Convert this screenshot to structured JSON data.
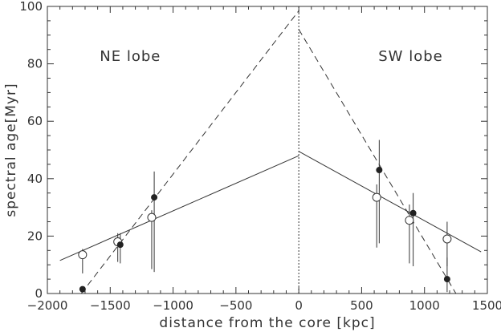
{
  "chart_data": {
    "type": "scatter",
    "xlabel": "distance from the core [kpc]",
    "ylabel": "spectral age[Myr]",
    "xlim": [
      -2000,
      1500
    ],
    "ylim": [
      0,
      100
    ],
    "x_ticks": [
      -2000,
      -1500,
      -1000,
      -500,
      0,
      500,
      1000,
      1500
    ],
    "y_ticks": [
      0,
      20,
      40,
      60,
      80,
      100
    ],
    "x_tick_labels": [
      "−2000",
      "−1500",
      "−1000",
      "−500",
      "0",
      "500",
      "1000",
      "1500"
    ],
    "y_tick_labels": [
      "0",
      "20",
      "40",
      "60",
      "80",
      "100"
    ],
    "grid": false,
    "annotations": [
      {
        "text": "NE lobe",
        "x": -1340,
        "y": 81
      },
      {
        "text": "SW lobe",
        "x": 890,
        "y": 81
      }
    ],
    "vertical_reference_line": {
      "x": 0,
      "style": "dotted"
    },
    "series": [
      {
        "marker": "open-circle",
        "points": [
          {
            "x": -1720,
            "y": 13.5,
            "yerr_low": 7.0,
            "yerr_high": 15.5
          },
          {
            "x": -1440,
            "y": 18.0,
            "yerr_low": 11.0,
            "yerr_high": 21.0
          },
          {
            "x": -1170,
            "y": 26.5,
            "yerr_low": 8.5,
            "yerr_high": 29.0
          },
          {
            "x": 620,
            "y": 33.5,
            "yerr_low": 16.0,
            "yerr_high": 38.0
          },
          {
            "x": 880,
            "y": 25.5,
            "yerr_low": 10.5,
            "yerr_high": 31.0
          },
          {
            "x": 1180,
            "y": 19.0,
            "yerr_low": 9.5,
            "yerr_high": 25.0
          }
        ]
      },
      {
        "marker": "filled-circle",
        "points": [
          {
            "x": -1720,
            "y": 1.5,
            "yerr_low": 0.5,
            "yerr_high": 2.0
          },
          {
            "x": -1420,
            "y": 17.0,
            "yerr_low": 10.5,
            "yerr_high": 21.0
          },
          {
            "x": -1150,
            "y": 33.5,
            "yerr_low": 7.5,
            "yerr_high": 42.5
          },
          {
            "x": 640,
            "y": 43.0,
            "yerr_low": 17.5,
            "yerr_high": 53.5
          },
          {
            "x": 910,
            "y": 28.0,
            "yerr_low": 9.5,
            "yerr_high": 35.0
          },
          {
            "x": 1180,
            "y": 5.0,
            "yerr_low": 0.5,
            "yerr_high": 12.5
          }
        ]
      }
    ],
    "fit_lines": [
      {
        "style": "solid",
        "x": [
          -1900,
          0
        ],
        "y": [
          11.5,
          48.0
        ]
      },
      {
        "style": "solid",
        "x": [
          0,
          1450
        ],
        "y": [
          49.5,
          14.5
        ]
      },
      {
        "style": "dashed",
        "x": [
          -1730,
          0
        ],
        "y": [
          0.0,
          98.5
        ]
      },
      {
        "style": "dashed",
        "x": [
          0,
          1250
        ],
        "y": [
          92.0,
          0.0
        ]
      }
    ]
  }
}
